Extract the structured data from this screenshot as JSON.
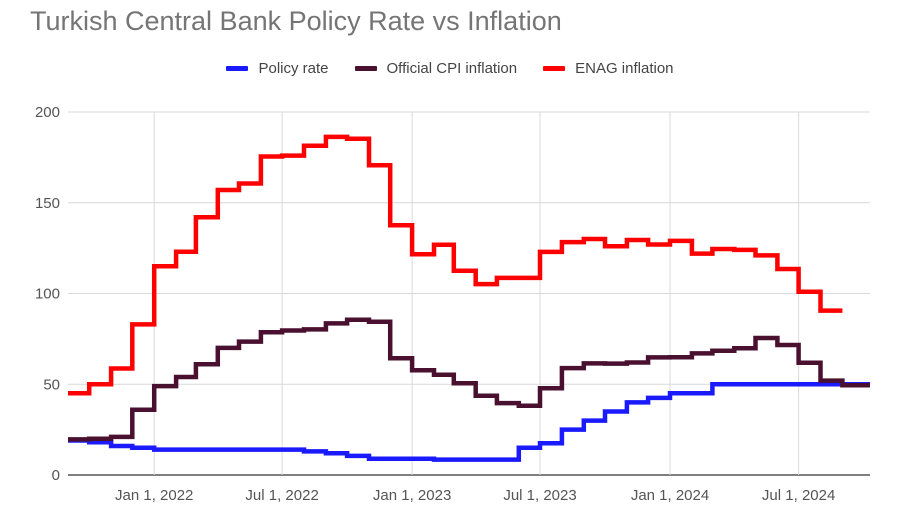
{
  "chart_data": {
    "type": "line",
    "step": true,
    "title": "Turkish Central Bank Policy Rate vs Inflation",
    "xlabel": "",
    "ylabel": "",
    "ylim": [
      0,
      200
    ],
    "yticks": [
      0,
      50,
      100,
      150,
      200
    ],
    "xlim": [
      "2021-09-01",
      "2024-10-10"
    ],
    "xticks": [
      {
        "date": "2022-01-01",
        "label": "Jan 1, 2022"
      },
      {
        "date": "2022-07-01",
        "label": "Jul 1, 2022"
      },
      {
        "date": "2023-01-01",
        "label": "Jan 1, 2023"
      },
      {
        "date": "2023-07-01",
        "label": "Jul 1, 2023"
      },
      {
        "date": "2024-01-01",
        "label": "Jan 1, 2024"
      },
      {
        "date": "2024-07-01",
        "label": "Jul 1, 2024"
      }
    ],
    "grid": true,
    "legend_position": "top",
    "series": [
      {
        "name": "Policy rate",
        "color": "#1a1aff",
        "points": [
          [
            "2021-09-01",
            19
          ],
          [
            "2021-10-01",
            18
          ],
          [
            "2021-11-01",
            16
          ],
          [
            "2021-12-01",
            15
          ],
          [
            "2022-01-01",
            14
          ],
          [
            "2022-08-01",
            13
          ],
          [
            "2022-09-01",
            12
          ],
          [
            "2022-10-01",
            10.5
          ],
          [
            "2022-11-01",
            9
          ],
          [
            "2023-02-01",
            8.5
          ],
          [
            "2023-06-01",
            15
          ],
          [
            "2023-07-01",
            17.5
          ],
          [
            "2023-08-01",
            25
          ],
          [
            "2023-09-01",
            30
          ],
          [
            "2023-10-01",
            35
          ],
          [
            "2023-11-01",
            40
          ],
          [
            "2023-12-01",
            42.5
          ],
          [
            "2024-01-01",
            45
          ],
          [
            "2024-03-01",
            50
          ],
          [
            "2024-10-10",
            50
          ]
        ]
      },
      {
        "name": "Official CPI inflation",
        "color": "#4a1030",
        "points": [
          [
            "2021-09-01",
            19.6
          ],
          [
            "2021-10-01",
            20
          ],
          [
            "2021-11-01",
            21
          ],
          [
            "2021-12-01",
            36
          ],
          [
            "2022-01-01",
            49
          ],
          [
            "2022-02-01",
            54
          ],
          [
            "2022-03-01",
            61
          ],
          [
            "2022-04-01",
            70
          ],
          [
            "2022-05-01",
            73.5
          ],
          [
            "2022-06-01",
            78.6
          ],
          [
            "2022-07-01",
            79.6
          ],
          [
            "2022-08-01",
            80.2
          ],
          [
            "2022-09-01",
            83.5
          ],
          [
            "2022-10-01",
            85.5
          ],
          [
            "2022-11-01",
            84.4
          ],
          [
            "2022-12-01",
            64.3
          ],
          [
            "2023-01-01",
            57.7
          ],
          [
            "2023-02-01",
            55.2
          ],
          [
            "2023-03-01",
            50.5
          ],
          [
            "2023-04-01",
            43.7
          ],
          [
            "2023-05-01",
            39.6
          ],
          [
            "2023-06-01",
            38.2
          ],
          [
            "2023-07-01",
            47.8
          ],
          [
            "2023-08-01",
            58.9
          ],
          [
            "2023-09-01",
            61.5
          ],
          [
            "2023-10-01",
            61.4
          ],
          [
            "2023-11-01",
            62
          ],
          [
            "2023-12-01",
            64.8
          ],
          [
            "2024-01-01",
            64.9
          ],
          [
            "2024-02-01",
            67
          ],
          [
            "2024-03-01",
            68.5
          ],
          [
            "2024-04-01",
            69.8
          ],
          [
            "2024-05-01",
            75.5
          ],
          [
            "2024-06-01",
            71.6
          ],
          [
            "2024-07-01",
            61.8
          ],
          [
            "2024-08-01",
            52
          ],
          [
            "2024-09-01",
            49.4
          ],
          [
            "2024-10-10",
            49.4
          ]
        ]
      },
      {
        "name": "ENAG inflation",
        "color": "#ff0000",
        "points": [
          [
            "2021-09-01",
            45
          ],
          [
            "2021-10-01",
            50
          ],
          [
            "2021-11-01",
            58.7
          ],
          [
            "2021-12-01",
            83
          ],
          [
            "2022-01-01",
            115
          ],
          [
            "2022-02-01",
            123
          ],
          [
            "2022-03-01",
            142
          ],
          [
            "2022-04-01",
            157
          ],
          [
            "2022-05-01",
            160.6
          ],
          [
            "2022-06-01",
            175.5
          ],
          [
            "2022-07-01",
            176
          ],
          [
            "2022-08-01",
            181.4
          ],
          [
            "2022-09-01",
            186.3
          ],
          [
            "2022-10-01",
            185.3
          ],
          [
            "2022-11-01",
            170.7
          ],
          [
            "2022-12-01",
            137.6
          ],
          [
            "2023-01-01",
            121.6
          ],
          [
            "2023-02-01",
            126.9
          ],
          [
            "2023-03-01",
            112.5
          ],
          [
            "2023-04-01",
            105.2
          ],
          [
            "2023-05-01",
            108.6
          ],
          [
            "2023-06-01",
            108.6
          ],
          [
            "2023-07-01",
            122.9
          ],
          [
            "2023-08-01",
            128.3
          ],
          [
            "2023-09-01",
            130
          ],
          [
            "2023-10-01",
            126
          ],
          [
            "2023-11-01",
            129.5
          ],
          [
            "2023-12-01",
            127
          ],
          [
            "2024-01-01",
            129
          ],
          [
            "2024-02-01",
            122
          ],
          [
            "2024-03-01",
            124.5
          ],
          [
            "2024-04-01",
            124
          ],
          [
            "2024-05-01",
            121
          ],
          [
            "2024-06-01",
            113.5
          ],
          [
            "2024-07-01",
            101
          ],
          [
            "2024-08-01",
            90.6
          ],
          [
            "2024-09-01",
            90.6
          ]
        ]
      }
    ]
  }
}
